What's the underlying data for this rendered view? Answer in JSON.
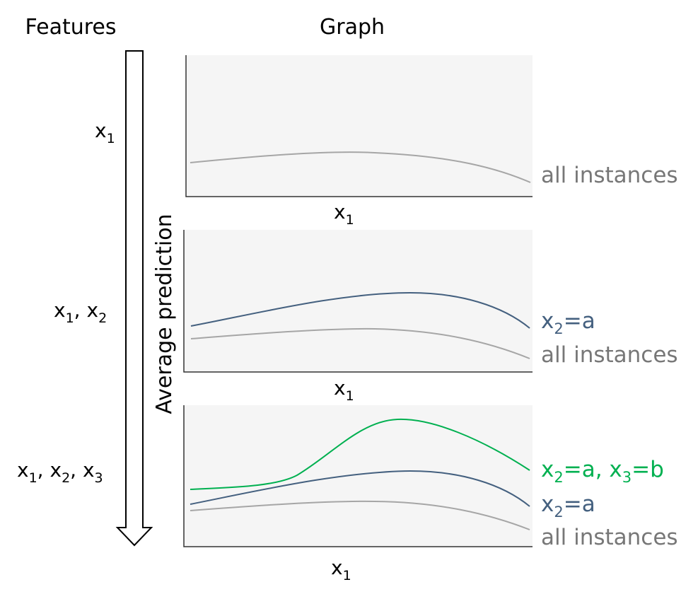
{
  "headers": {
    "features": "Features",
    "graph": "Graph"
  },
  "y_axis_label": "Average prediction",
  "colors": {
    "all_instances": "#a6a6a6",
    "x2_a": "#44607f",
    "x2_a_x3_b": "#00b050",
    "label_gray": "#777777",
    "panel_bg": "#f5f5f5"
  },
  "rows": [
    {
      "features": [
        {
          "base": "x",
          "sub": "1"
        }
      ],
      "x_axis": {
        "base": "x",
        "sub": "1"
      },
      "legend": [
        {
          "id": "all",
          "plain": "all instances"
        }
      ]
    },
    {
      "features": [
        {
          "base": "x",
          "sub": "1"
        },
        {
          "base": "x",
          "sub": "2"
        }
      ],
      "x_axis": {
        "base": "x",
        "sub": "1"
      },
      "legend": [
        {
          "id": "x2a",
          "base": "x",
          "sub": "2",
          "rest": "=a"
        },
        {
          "id": "all",
          "plain": "all instances"
        }
      ]
    },
    {
      "features": [
        {
          "base": "x",
          "sub": "1"
        },
        {
          "base": "x",
          "sub": "2"
        },
        {
          "base": "x",
          "sub": "3"
        }
      ],
      "x_axis": {
        "base": "x",
        "sub": "1"
      },
      "legend": [
        {
          "id": "x2ax3b",
          "base": "x",
          "sub": "2",
          "rest": "=a, ",
          "base2": "x",
          "sub2": "3",
          "rest2": "=b"
        },
        {
          "id": "x2a",
          "base": "x",
          "sub": "2",
          "rest": "=a"
        },
        {
          "id": "all",
          "plain": "all instances"
        }
      ]
    }
  ]
}
